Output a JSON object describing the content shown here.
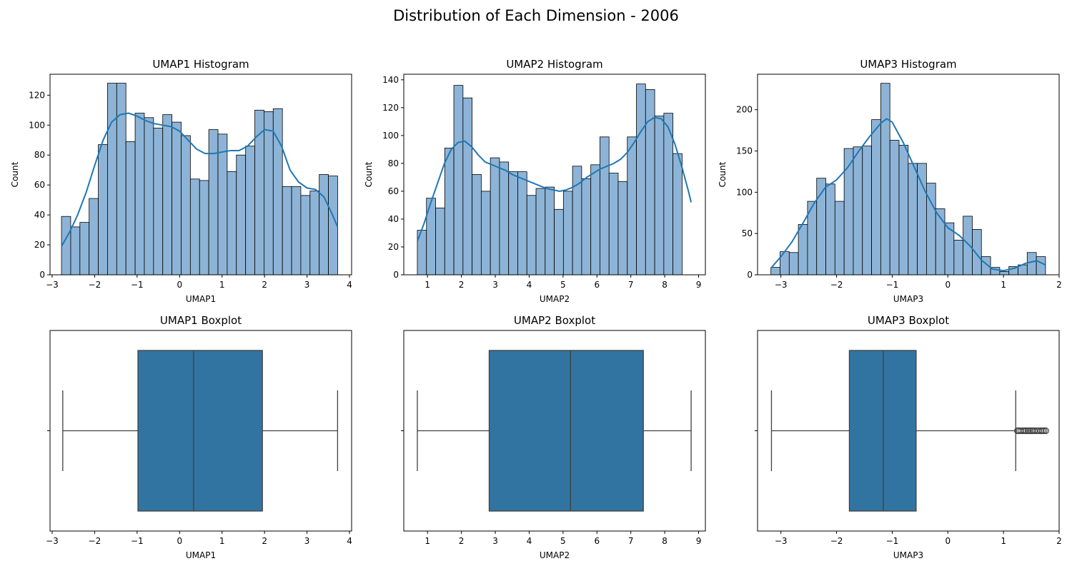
{
  "suptitle": "Distribution of Each Dimension - 2006",
  "colors": {
    "hist_fill": "#8db4d7",
    "kde_line": "#1f77b4",
    "box_fill": "#3274a1",
    "box_line": "#404040"
  },
  "chart_data": [
    {
      "type": "bar",
      "subtype": "histogram",
      "title": "UMAP1 Histogram",
      "xlabel": "UMAP1",
      "ylabel": "Count",
      "xlim": [
        -3.05,
        4.05
      ],
      "ylim": [
        0,
        134
      ],
      "xticks": [
        -3,
        -2,
        -1,
        0,
        1,
        2,
        3,
        4
      ],
      "yticks": [
        0,
        20,
        40,
        60,
        80,
        100,
        120
      ],
      "bin_start": -2.78,
      "bin_width": 0.2167,
      "counts": [
        39,
        32,
        35,
        51,
        87,
        128,
        128,
        89,
        108,
        105,
        98,
        107,
        102,
        93,
        64,
        63,
        97,
        94,
        69,
        80,
        86,
        110,
        109,
        111,
        59,
        59,
        53,
        56,
        67,
        66
      ],
      "kde": {
        "x": [
          -2.78,
          -2.6,
          -2.4,
          -2.2,
          -2.0,
          -1.8,
          -1.6,
          -1.4,
          -1.2,
          -1.0,
          -0.8,
          -0.6,
          -0.4,
          -0.2,
          0.0,
          0.2,
          0.4,
          0.6,
          0.8,
          1.0,
          1.2,
          1.4,
          1.6,
          1.8,
          2.0,
          2.2,
          2.4,
          2.6,
          2.8,
          3.0,
          3.2,
          3.4,
          3.6,
          3.72
        ],
        "y": [
          19,
          28,
          40,
          55,
          73,
          90,
          102,
          107,
          108,
          106,
          103,
          101,
          100,
          99,
          96,
          90,
          84,
          81,
          81,
          82,
          83,
          83,
          86,
          92,
          97,
          96,
          86,
          70,
          62,
          58,
          57,
          52,
          40,
          32
        ]
      }
    },
    {
      "type": "bar",
      "subtype": "histogram",
      "title": "UMAP2 Histogram",
      "xlabel": "UMAP2",
      "ylabel": "Count",
      "xlim": [
        0.3,
        9.2
      ],
      "ylim": [
        0,
        144
      ],
      "xticks": [
        1,
        2,
        3,
        4,
        5,
        6,
        7,
        8,
        9
      ],
      "yticks": [
        0,
        20,
        40,
        60,
        80,
        100,
        120,
        140
      ],
      "bin_start": 0.7,
      "bin_width": 0.2694,
      "counts": [
        32,
        55,
        48,
        91,
        136,
        127,
        72,
        60,
        84,
        81,
        74,
        74,
        57,
        62,
        63,
        47,
        60,
        78,
        69,
        79,
        99,
        73,
        67,
        99,
        137,
        133,
        114,
        116,
        87
      ],
      "kde": {
        "x": [
          0.7,
          0.9,
          1.1,
          1.3,
          1.5,
          1.7,
          1.9,
          2.1,
          2.3,
          2.5,
          2.7,
          2.9,
          3.1,
          3.3,
          3.5,
          3.7,
          3.9,
          4.1,
          4.3,
          4.5,
          4.7,
          4.9,
          5.1,
          5.3,
          5.5,
          5.7,
          5.9,
          6.1,
          6.3,
          6.5,
          6.7,
          6.9,
          7.1,
          7.3,
          7.5,
          7.7,
          7.9,
          8.1,
          8.3,
          8.5,
          8.7,
          8.78
        ],
        "y": [
          24,
          37,
          52,
          66,
          80,
          90,
          95,
          96,
          92,
          86,
          81,
          79,
          77,
          75,
          72,
          70,
          68,
          66,
          64,
          62,
          61,
          60,
          61,
          63,
          66,
          70,
          73,
          76,
          78,
          80,
          83,
          88,
          95,
          103,
          110,
          113,
          112,
          106,
          94,
          78,
          60,
          52
        ]
      }
    },
    {
      "type": "bar",
      "subtype": "histogram",
      "title": "UMAP3 Histogram",
      "xlabel": "UMAP3",
      "ylabel": "Count",
      "xlim": [
        -3.42,
        2.0
      ],
      "ylim": [
        0,
        243
      ],
      "xticks": [
        -3,
        -2,
        -1,
        0,
        1,
        2
      ],
      "yticks": [
        0,
        50,
        100,
        150,
        200
      ],
      "bin_start": -3.18,
      "bin_width": 0.1645,
      "counts": [
        9,
        28,
        27,
        61,
        89,
        117,
        110,
        89,
        153,
        155,
        156,
        188,
        232,
        163,
        157,
        135,
        135,
        111,
        80,
        63,
        42,
        71,
        55,
        22,
        9,
        4,
        10,
        12,
        27,
        22
      ],
      "kde": {
        "x": [
          -3.18,
          -3.0,
          -2.8,
          -2.6,
          -2.4,
          -2.2,
          -2.0,
          -1.8,
          -1.6,
          -1.4,
          -1.2,
          -1.1,
          -1.0,
          -0.8,
          -0.6,
          -0.4,
          -0.2,
          0.0,
          0.2,
          0.4,
          0.6,
          0.8,
          1.0,
          1.2,
          1.4,
          1.6,
          1.75
        ],
        "y": [
          8,
          22,
          40,
          63,
          87,
          106,
          115,
          130,
          150,
          168,
          184,
          189,
          185,
          160,
          130,
          100,
          75,
          57,
          48,
          35,
          18,
          7,
          5,
          8,
          14,
          17,
          12
        ]
      }
    },
    {
      "type": "box",
      "title": "UMAP1 Boxplot",
      "xlabel": "UMAP1",
      "xlim": [
        -3.05,
        4.05
      ],
      "xticks": [
        -3,
        -2,
        -1,
        0,
        1,
        2,
        3,
        4
      ],
      "whisker_low": -2.75,
      "q1": -0.98,
      "median": 0.33,
      "q3": 1.95,
      "whisker_high": 3.72,
      "outliers": []
    },
    {
      "type": "box",
      "title": "UMAP2 Boxplot",
      "xlabel": "UMAP2",
      "xlim": [
        0.3,
        9.2
      ],
      "xticks": [
        1,
        2,
        3,
        4,
        5,
        6,
        7,
        8,
        9
      ],
      "whisker_low": 0.7,
      "q1": 2.82,
      "median": 5.22,
      "q3": 7.37,
      "whisker_high": 8.78,
      "outliers": []
    },
    {
      "type": "box",
      "title": "UMAP3 Boxplot",
      "xlabel": "UMAP3",
      "xlim": [
        -3.42,
        2.0
      ],
      "xticks": [
        -3,
        -2,
        -1,
        0,
        1,
        2
      ],
      "whisker_low": -3.17,
      "q1": -1.77,
      "median": -1.16,
      "q3": -0.57,
      "whisker_high": 1.22,
      "outliers": [
        1.25,
        1.28,
        1.31,
        1.35,
        1.38,
        1.41,
        1.44,
        1.47,
        1.5,
        1.53,
        1.56,
        1.6,
        1.63,
        1.67,
        1.7,
        1.73,
        1.76
      ]
    }
  ]
}
